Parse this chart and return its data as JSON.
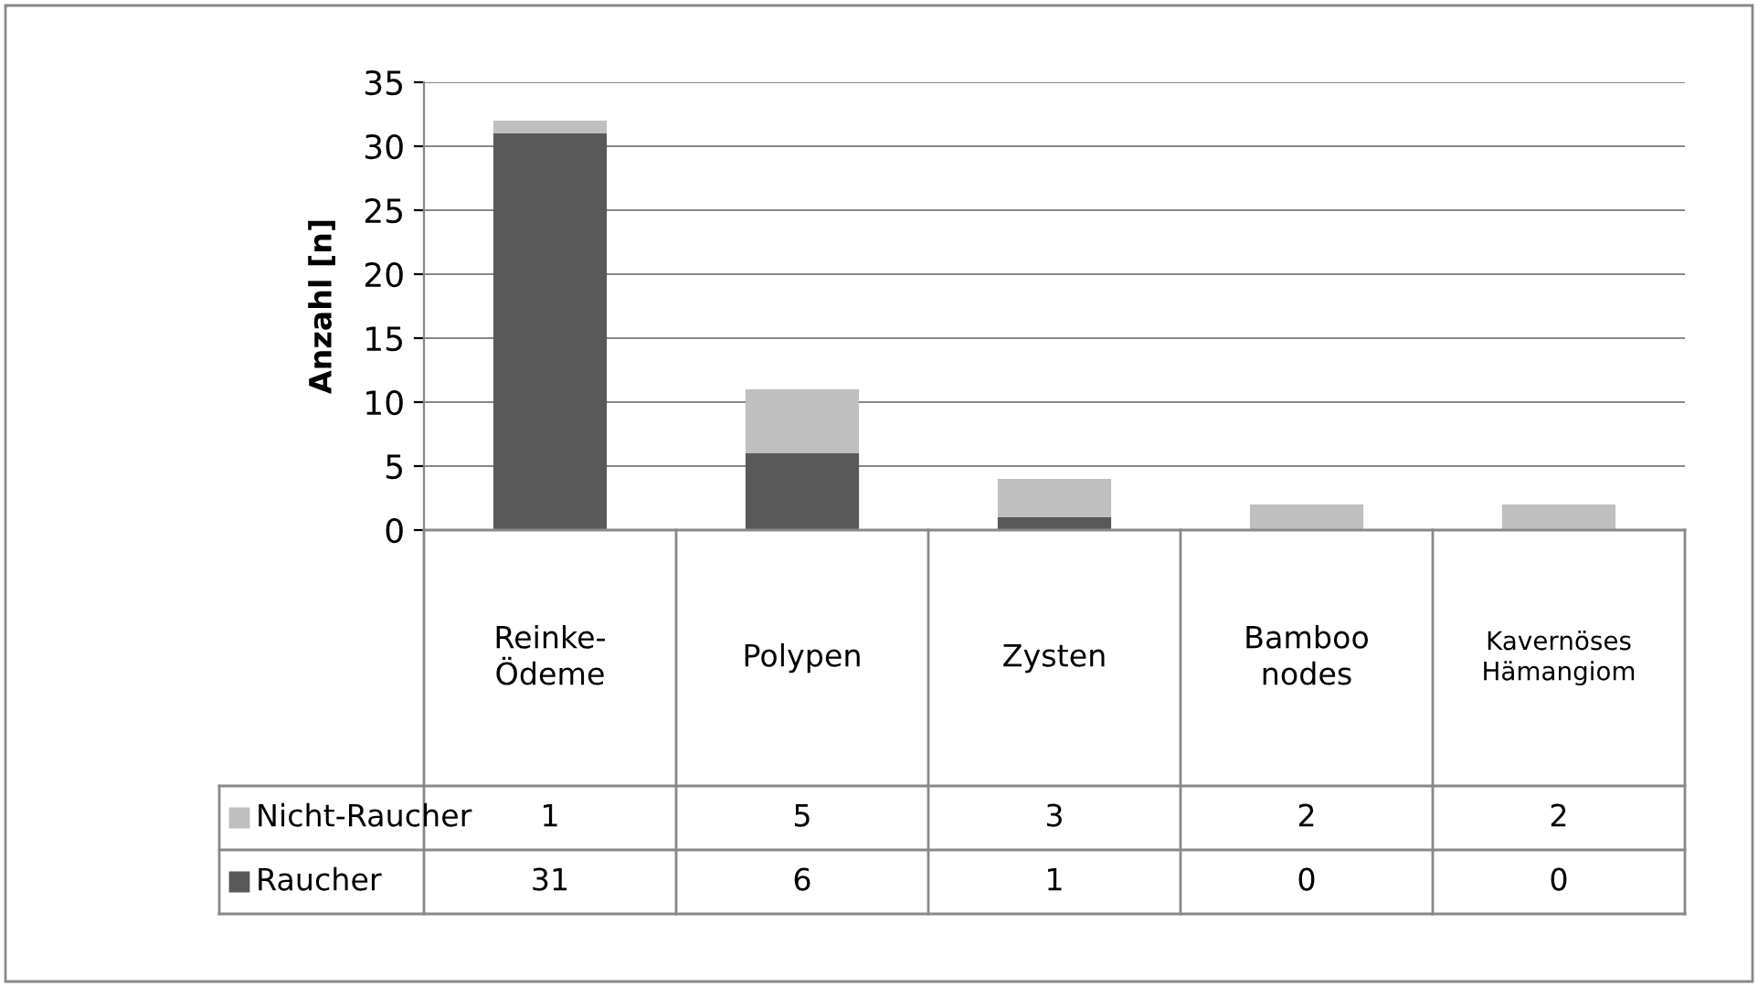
{
  "chart_data": {
    "type": "bar",
    "stacked": true,
    "ylabel": "Anzahl [n]",
    "categories": [
      "Reinke-Ödeme",
      "Polypen",
      "Zysten",
      "Bamboo nodes",
      "Kavernöses Hämangiom"
    ],
    "series": [
      {
        "name": "Raucher",
        "color": "#595959",
        "values": [
          31,
          6,
          1,
          0,
          0
        ]
      },
      {
        "name": "Nicht-Raucher",
        "color": "#bfbfbf",
        "values": [
          1,
          5,
          3,
          2,
          2
        ]
      }
    ],
    "ylim": [
      0,
      35
    ],
    "yticks": [
      0,
      5,
      10,
      15,
      20,
      25,
      30,
      35
    ],
    "grid": "y",
    "data_labels": true,
    "legend": "bottom left"
  }
}
